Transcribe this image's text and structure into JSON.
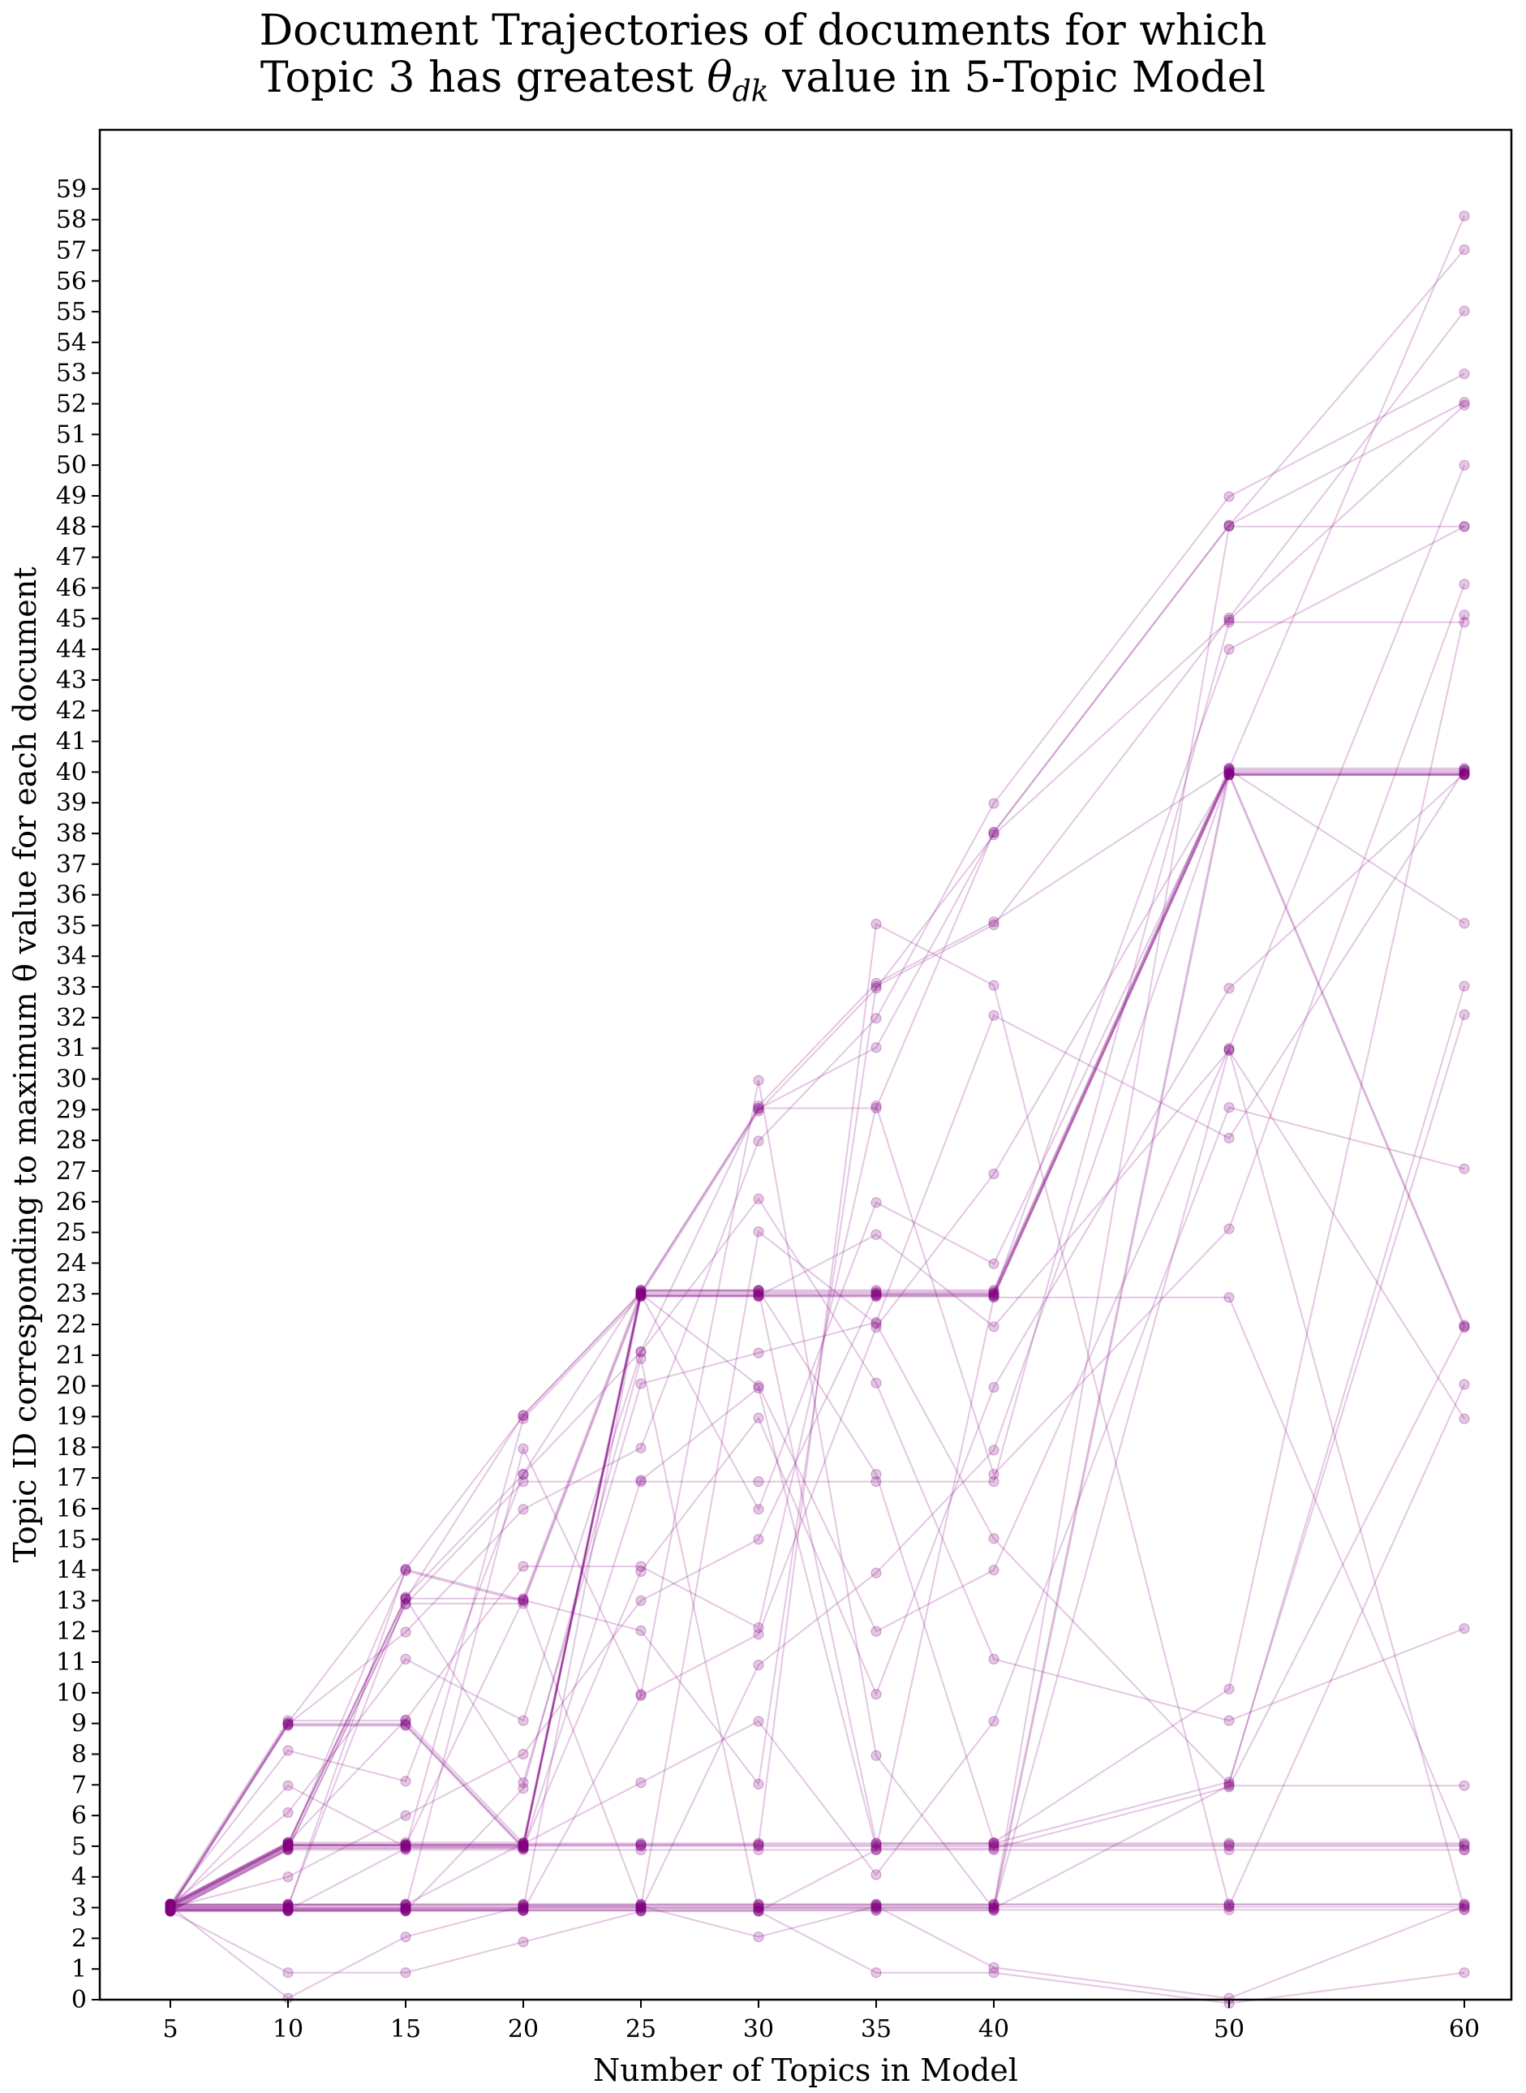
{
  "title": {
    "line1": "Document Trajectories of documents for which",
    "line2_prefix": "Topic 3 has greatest ",
    "line2_symbol": "θ",
    "line2_sub": "dk",
    "line2_suffix": " value in 5-Topic Model"
  },
  "chart_data": {
    "type": "line",
    "title": "Document Trajectories of documents for which Topic 3 has greatest θdk value in 5-Topic Model",
    "xlabel": "Number of Topics in Model",
    "ylabel": "Topic ID corresponding to maximum θ value for each document",
    "x": [
      5,
      10,
      15,
      20,
      25,
      30,
      35,
      40,
      50,
      60
    ],
    "x_ticks": [
      "5",
      "10",
      "15",
      "20",
      "25",
      "30",
      "35",
      "40",
      "50",
      "60"
    ],
    "xlim": [
      2,
      62
    ],
    "ylim": [
      0,
      60
    ],
    "y_ticks": [
      "0",
      "1",
      "2",
      "3",
      "4",
      "5",
      "6",
      "7",
      "8",
      "9",
      "10",
      "11",
      "12",
      "13",
      "14",
      "15",
      "16",
      "17",
      "18",
      "19",
      "20",
      "21",
      "22",
      "23",
      "24",
      "25",
      "26",
      "27",
      "28",
      "29",
      "30",
      "31",
      "32",
      "33",
      "34",
      "35",
      "36",
      "37",
      "38",
      "39",
      "40",
      "41",
      "42",
      "43",
      "44",
      "45",
      "46",
      "47",
      "48",
      "49",
      "50",
      "51",
      "52",
      "53",
      "54",
      "55",
      "56",
      "57",
      "58",
      "59"
    ],
    "color": "#800080",
    "grid": false,
    "legend": "none",
    "series": [
      {
        "values": [
          3,
          3,
          3,
          3,
          3,
          3,
          3,
          3,
          3,
          3
        ]
      },
      {
        "values": [
          3,
          3,
          3,
          3,
          3,
          3,
          3,
          3,
          3,
          3
        ]
      },
      {
        "values": [
          3,
          3,
          3,
          3,
          3,
          3,
          3,
          3,
          3,
          3
        ]
      },
      {
        "values": [
          3,
          3,
          3,
          3,
          3,
          3,
          3,
          3,
          3,
          3
        ]
      },
      {
        "values": [
          3,
          3,
          3,
          3,
          3,
          3,
          3,
          3,
          48,
          48
        ]
      },
      {
        "values": [
          3,
          3,
          3,
          3,
          3,
          3,
          3,
          3,
          40,
          40
        ]
      },
      {
        "values": [
          3,
          3,
          3,
          3,
          3,
          3,
          3,
          3,
          40,
          40
        ]
      },
      {
        "values": [
          3,
          3,
          3,
          3,
          3,
          3,
          3,
          3,
          7,
          7
        ]
      },
      {
        "values": [
          3,
          5,
          5,
          5,
          5,
          5,
          5,
          5,
          5,
          5
        ]
      },
      {
        "values": [
          3,
          5,
          5,
          5,
          5,
          5,
          5,
          5,
          5,
          5
        ]
      },
      {
        "values": [
          3,
          5,
          5,
          5,
          23,
          23,
          23,
          23,
          40,
          40
        ]
      },
      {
        "values": [
          3,
          5,
          5,
          5,
          23,
          23,
          23,
          23,
          40,
          40
        ]
      },
      {
        "values": [
          3,
          5,
          5,
          5,
          23,
          23,
          23,
          23,
          40,
          40
        ]
      },
      {
        "values": [
          3,
          9,
          9,
          5,
          23,
          23,
          23,
          23,
          40,
          40
        ]
      },
      {
        "values": [
          3,
          9,
          9,
          5,
          23,
          23,
          5,
          5,
          5,
          5
        ]
      },
      {
        "values": [
          3,
          9,
          9,
          5,
          5,
          5,
          5,
          5,
          5,
          5
        ]
      },
      {
        "values": [
          3,
          5,
          13,
          13,
          23,
          23,
          23,
          23,
          40,
          40
        ]
      },
      {
        "values": [
          3,
          5,
          13,
          13,
          23,
          23,
          23,
          23,
          40,
          35
        ]
      },
      {
        "values": [
          3,
          5,
          14,
          13,
          23,
          23,
          23,
          23,
          40,
          40
        ]
      },
      {
        "values": [
          3,
          5,
          13,
          17,
          17,
          17,
          17,
          17,
          45,
          45
        ]
      },
      {
        "values": [
          3,
          3,
          13,
          19,
          23,
          29,
          29,
          38,
          48,
          52
        ]
      },
      {
        "values": [
          3,
          3,
          3,
          3,
          23,
          29,
          33,
          38,
          45,
          52
        ]
      },
      {
        "values": [
          3,
          5,
          13,
          17,
          21,
          29,
          33,
          35,
          40,
          58
        ]
      },
      {
        "values": [
          3,
          9,
          14,
          19,
          23,
          29,
          31,
          38,
          48,
          57
        ]
      },
      {
        "values": [
          3,
          3,
          5,
          5,
          17,
          20,
          5,
          5,
          7,
          22
        ]
      },
      {
        "values": [
          3,
          3,
          3,
          5,
          5,
          5,
          5,
          5,
          7,
          32
        ]
      },
      {
        "values": [
          3,
          5,
          5,
          5,
          23,
          20,
          12,
          14,
          31,
          50
        ]
      },
      {
        "values": [
          3,
          3,
          3,
          3,
          10,
          12,
          22,
          27,
          40,
          22
        ]
      },
      {
        "values": [
          3,
          5,
          13,
          7,
          20,
          21,
          22,
          32,
          28,
          40
        ]
      },
      {
        "values": [
          3,
          7,
          5,
          5,
          23,
          16,
          26,
          24,
          40,
          22
        ]
      },
      {
        "values": [
          3,
          1,
          1,
          2,
          3,
          3,
          1,
          1,
          0,
          1
        ]
      },
      {
        "values": [
          3,
          0,
          2,
          3,
          3,
          2,
          3,
          1,
          0,
          3
        ]
      },
      {
        "values": [
          3,
          9,
          9,
          5,
          14,
          19,
          10,
          20,
          33,
          40
        ]
      },
      {
        "values": [
          3,
          5,
          9,
          14,
          14,
          12,
          29,
          17,
          25,
          46
        ]
      },
      {
        "values": [
          3,
          3,
          14,
          13,
          12,
          7,
          33,
          35,
          45,
          55
        ]
      },
      {
        "values": [
          3,
          5,
          5,
          19,
          23,
          23,
          25,
          22,
          31,
          19
        ]
      },
      {
        "values": [
          3,
          6,
          11,
          9,
          21,
          26,
          20,
          11,
          9,
          12
        ]
      },
      {
        "values": [
          3,
          4,
          6,
          8,
          13,
          15,
          23,
          23,
          44,
          48
        ]
      },
      {
        "values": [
          3,
          3,
          3,
          3,
          3,
          11,
          14,
          18,
          40,
          40
        ]
      },
      {
        "values": [
          3,
          5,
          5,
          5,
          7,
          9,
          4,
          9,
          29,
          27
        ]
      },
      {
        "values": [
          3,
          9,
          12,
          16,
          18,
          28,
          32,
          39,
          49,
          53
        ]
      },
      {
        "values": [
          3,
          3,
          3,
          7,
          21,
          3,
          5,
          23,
          23,
          5
        ]
      },
      {
        "values": [
          3,
          5,
          5,
          5,
          5,
          5,
          35,
          33,
          3,
          20
        ]
      },
      {
        "values": [
          3,
          3,
          3,
          18,
          10,
          30,
          8,
          3,
          31,
          3
        ]
      },
      {
        "values": [
          3,
          8,
          7,
          17,
          23,
          23,
          17,
          5,
          10,
          45
        ]
      },
      {
        "values": [
          3,
          5,
          5,
          13,
          3,
          25,
          22,
          15,
          7,
          33
        ]
      }
    ]
  }
}
